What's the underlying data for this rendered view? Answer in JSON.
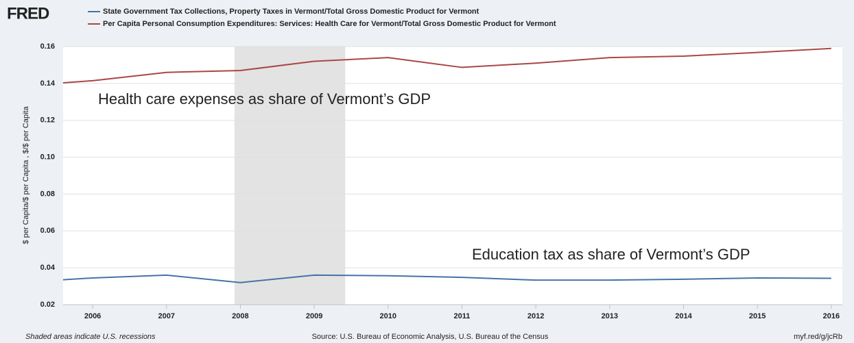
{
  "logo": "FRED",
  "chart_data": {
    "type": "line",
    "series": [
      {
        "name": "State Government Tax Collections, Property Taxes in Vermont/Total Gross Domestic Product for Vermont",
        "color": "#4572a7",
        "values": [
          0.032,
          0.0345,
          0.036,
          0.032,
          0.036,
          0.0357,
          0.0348,
          0.0333,
          0.0333,
          0.0338,
          0.0345,
          0.0343
        ]
      },
      {
        "name": "Per Capita Personal Consumption Expenditures: Services: Health Care for Vermont/Total Gross Domestic Product for Vermont",
        "color": "#aa4643",
        "values": [
          0.1385,
          0.1415,
          0.146,
          0.147,
          0.152,
          0.154,
          0.1487,
          0.151,
          0.154,
          0.1548,
          0.1568,
          0.159
        ]
      }
    ],
    "x": [
      2005,
      2006,
      2007,
      2008,
      2009,
      2010,
      2011,
      2012,
      2013,
      2014,
      2015,
      2016
    ],
    "xlim": [
      2005.6,
      2016.15
    ],
    "xticks": [
      2006,
      2007,
      2008,
      2009,
      2010,
      2011,
      2012,
      2013,
      2014,
      2015,
      2016
    ],
    "ylim": [
      0.02,
      0.16
    ],
    "yticks": [
      0.02,
      0.04,
      0.06,
      0.08,
      {
        "value": 0.1,
        "label": "0.10"
      },
      0.12,
      0.14,
      0.16
    ],
    "ylabel": "$ per Capita/$ per Capita , $/$ per Capita",
    "grid": true,
    "recessions": [
      [
        2007.92,
        2009.42
      ]
    ],
    "annotations": [
      {
        "text": "Health care expenses as share of Vermont’s GDP",
        "color": "#b03a2e"
      },
      {
        "text": "Education tax as share of Vermont’s GDP",
        "color": "#2a7a9a"
      }
    ],
    "note": "Shaded areas indicate U.S. recessions",
    "source": "Source: U.S. Bureau of Economic Analysis, U.S. Bureau of the Census",
    "link": "myf.red/g/jcRb"
  }
}
